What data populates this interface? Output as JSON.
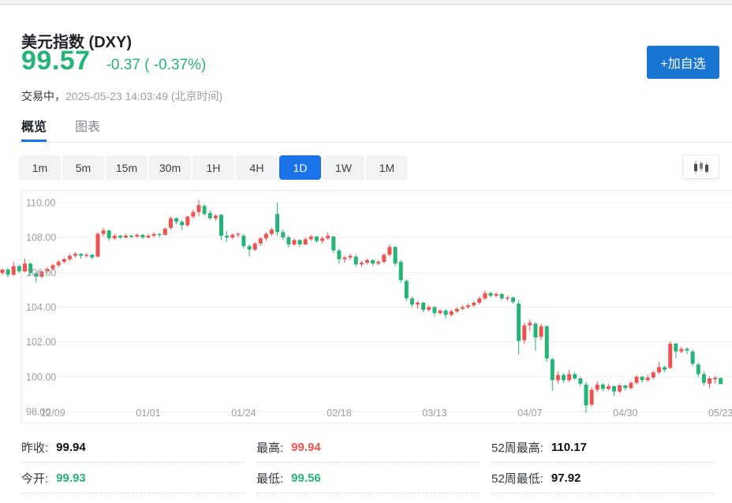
{
  "header": {
    "title": "美元指数 (DXY)",
    "price": "99.57",
    "change": "-0.37 ( -0.37%)",
    "status_label": "交易中，",
    "timestamp": "2025-05-23 14:03:49",
    "timezone_note": "(北京时间)",
    "watchlist_button": "+加自选"
  },
  "tabs": [
    {
      "key": "overview",
      "label": "概览",
      "active": true
    },
    {
      "key": "chart",
      "label": "图表",
      "active": false
    }
  ],
  "timeframes": {
    "options": [
      "1m",
      "5m",
      "15m",
      "30m",
      "1H",
      "4H",
      "1D",
      "1W",
      "1M"
    ],
    "active": "1D"
  },
  "chart_style_icon": "candlestick-chart-icon",
  "colors": {
    "up": "#ef5350",
    "down": "#26b377",
    "accent": "#1a73e8",
    "button_blue": "#1976d2",
    "grid": "#efefef",
    "axis_text": "#9e9e9e"
  },
  "chart_data": {
    "type": "candlestick",
    "symbol": "DXY",
    "timeframe": "1D",
    "color_convention": "red = rise, green = fall",
    "ylim": [
      97.6,
      110.4
    ],
    "y_ticks": [
      {
        "v": 110,
        "label": "110.00"
      },
      {
        "v": 108,
        "label": "108.00"
      },
      {
        "v": 106,
        "label": "106.00"
      },
      {
        "v": 104,
        "label": "104.00"
      },
      {
        "v": 102,
        "label": "102.00"
      },
      {
        "v": 100,
        "label": "100.00"
      },
      {
        "v": 98,
        "label": "98.00"
      }
    ],
    "x_ticks": [
      {
        "i": 9,
        "label": "12/09"
      },
      {
        "i": 26,
        "label": "01/01"
      },
      {
        "i": 43,
        "label": "01/24"
      },
      {
        "i": 60,
        "label": "02/18"
      },
      {
        "i": 77,
        "label": "03/13"
      },
      {
        "i": 94,
        "label": "04/07"
      },
      {
        "i": 111,
        "label": "04/30"
      },
      {
        "i": 128,
        "label": "05/23"
      }
    ],
    "candles": [
      [
        105.95,
        106.2,
        105.85,
        106.15
      ],
      [
        106.15,
        106.25,
        105.7,
        105.85
      ],
      [
        105.85,
        106.6,
        105.8,
        106.35
      ],
      [
        106.35,
        106.45,
        105.95,
        106.05
      ],
      [
        106.05,
        106.8,
        106.0,
        106.5
      ],
      [
        106.5,
        106.55,
        105.85,
        105.95
      ],
      [
        105.95,
        106.0,
        105.42,
        105.75
      ],
      [
        105.75,
        106.1,
        105.65,
        106.05
      ],
      [
        106.05,
        106.3,
        105.95,
        106.2
      ],
      [
        106.2,
        106.5,
        106.1,
        106.4
      ],
      [
        106.4,
        106.7,
        106.3,
        106.6
      ],
      [
        106.6,
        106.85,
        106.5,
        106.75
      ],
      [
        106.75,
        107.05,
        106.65,
        106.95
      ],
      [
        106.95,
        107.15,
        106.85,
        107.05
      ],
      [
        107.05,
        107.1,
        106.8,
        106.95
      ],
      [
        106.95,
        107.1,
        106.85,
        107.0
      ],
      [
        107.0,
        107.05,
        106.75,
        106.85
      ],
      [
        106.9,
        108.3,
        106.85,
        108.2
      ],
      [
        108.2,
        108.55,
        108.05,
        108.4
      ],
      [
        108.4,
        108.45,
        107.8,
        107.95
      ],
      [
        107.95,
        108.2,
        107.85,
        108.1
      ],
      [
        108.1,
        108.15,
        107.9,
        108.0
      ],
      [
        108.0,
        108.2,
        107.95,
        108.1
      ],
      [
        108.1,
        108.15,
        107.95,
        108.05
      ],
      [
        108.05,
        108.25,
        108.0,
        108.15
      ],
      [
        108.15,
        108.2,
        107.9,
        108.0
      ],
      [
        108.0,
        108.2,
        107.95,
        108.1
      ],
      [
        108.1,
        108.3,
        108.0,
        108.2
      ],
      [
        108.2,
        108.25,
        108.0,
        108.15
      ],
      [
        108.15,
        108.6,
        108.1,
        108.5
      ],
      [
        108.55,
        109.2,
        108.45,
        109.1
      ],
      [
        109.1,
        109.15,
        108.75,
        108.9
      ],
      [
        108.9,
        109.0,
        108.4,
        108.7
      ],
      [
        108.7,
        109.25,
        108.6,
        109.2
      ],
      [
        109.2,
        109.6,
        109.1,
        109.45
      ],
      [
        109.45,
        110.17,
        109.2,
        109.85
      ],
      [
        109.8,
        109.9,
        109.25,
        109.35
      ],
      [
        109.4,
        109.55,
        109.0,
        109.1
      ],
      [
        109.1,
        109.35,
        108.95,
        109.25
      ],
      [
        109.3,
        109.35,
        107.85,
        108.1
      ],
      [
        108.1,
        108.35,
        107.75,
        108.0
      ],
      [
        108.0,
        108.25,
        107.9,
        108.15
      ],
      [
        108.15,
        108.3,
        108.0,
        108.2
      ],
      [
        108.1,
        108.2,
        107.35,
        107.5
      ],
      [
        107.5,
        107.6,
        106.9,
        107.3
      ],
      [
        107.3,
        107.75,
        107.2,
        107.65
      ],
      [
        107.65,
        108.0,
        107.5,
        107.95
      ],
      [
        107.95,
        108.3,
        107.8,
        108.2
      ],
      [
        108.2,
        108.55,
        108.1,
        108.45
      ],
      [
        109.35,
        110.0,
        108.1,
        108.3
      ],
      [
        108.3,
        108.45,
        107.85,
        108.0
      ],
      [
        108.0,
        108.1,
        107.4,
        107.6
      ],
      [
        107.6,
        107.95,
        107.5,
        107.85
      ],
      [
        107.85,
        107.9,
        107.45,
        107.6
      ],
      [
        107.6,
        108.0,
        107.55,
        107.9
      ],
      [
        107.9,
        108.15,
        107.8,
        108.05
      ],
      [
        108.05,
        108.1,
        107.7,
        107.8
      ],
      [
        107.8,
        108.05,
        107.65,
        107.95
      ],
      [
        107.95,
        108.3,
        107.85,
        108.1
      ],
      [
        108.05,
        108.1,
        107.1,
        107.25
      ],
      [
        107.25,
        107.35,
        106.5,
        106.75
      ],
      [
        106.75,
        106.95,
        106.55,
        106.85
      ],
      [
        106.85,
        107.05,
        106.7,
        106.95
      ],
      [
        106.9,
        107.0,
        106.3,
        106.45
      ],
      [
        106.45,
        106.65,
        106.3,
        106.55
      ],
      [
        106.55,
        106.8,
        106.45,
        106.7
      ],
      [
        106.7,
        106.75,
        106.35,
        106.5
      ],
      [
        106.5,
        106.7,
        106.4,
        106.6
      ],
      [
        106.6,
        107.1,
        106.5,
        107.0
      ],
      [
        107.0,
        107.6,
        106.9,
        107.45
      ],
      [
        107.45,
        107.5,
        106.35,
        106.5
      ],
      [
        106.6,
        106.7,
        105.4,
        105.55
      ],
      [
        105.5,
        105.6,
        104.35,
        104.5
      ],
      [
        104.5,
        104.6,
        104.0,
        104.15
      ],
      [
        104.15,
        104.35,
        103.9,
        104.25
      ],
      [
        104.25,
        104.3,
        103.7,
        103.85
      ],
      [
        103.85,
        104.1,
        103.75,
        104.0
      ],
      [
        104.0,
        104.05,
        103.45,
        103.65
      ],
      [
        103.65,
        103.9,
        103.55,
        103.8
      ],
      [
        103.8,
        103.9,
        103.35,
        103.55
      ],
      [
        103.55,
        103.85,
        103.45,
        103.75
      ],
      [
        103.75,
        104.0,
        103.65,
        103.9
      ],
      [
        103.9,
        104.1,
        103.8,
        104.0
      ],
      [
        104.0,
        104.2,
        103.9,
        104.1
      ],
      [
        104.1,
        104.35,
        104.0,
        104.25
      ],
      [
        104.25,
        104.6,
        104.15,
        104.5
      ],
      [
        104.5,
        104.95,
        104.4,
        104.8
      ],
      [
        104.8,
        104.9,
        104.55,
        104.65
      ],
      [
        104.65,
        104.85,
        104.55,
        104.75
      ],
      [
        104.75,
        104.8,
        104.4,
        104.5
      ],
      [
        104.5,
        104.65,
        104.35,
        104.55
      ],
      [
        104.55,
        104.6,
        104.2,
        104.3
      ],
      [
        104.2,
        104.4,
        101.3,
        102.05
      ],
      [
        102.1,
        103.1,
        101.9,
        102.95
      ],
      [
        102.95,
        103.3,
        102.6,
        103.1
      ],
      [
        103.05,
        103.15,
        101.5,
        102.25
      ],
      [
        102.3,
        103.05,
        102.1,
        102.9
      ],
      [
        102.9,
        102.95,
        100.85,
        101.05
      ],
      [
        101.0,
        101.1,
        99.2,
        99.8
      ],
      [
        99.8,
        100.3,
        99.6,
        100.1
      ],
      [
        100.1,
        100.2,
        99.65,
        99.8
      ],
      [
        99.8,
        100.4,
        99.7,
        100.15
      ],
      [
        100.15,
        100.25,
        99.8,
        99.9
      ],
      [
        99.9,
        100.0,
        99.45,
        99.6
      ],
      [
        99.55,
        99.7,
        97.92,
        98.35
      ],
      [
        98.4,
        99.4,
        98.3,
        99.25
      ],
      [
        99.25,
        99.75,
        99.1,
        99.55
      ],
      [
        99.55,
        99.65,
        99.15,
        99.3
      ],
      [
        99.3,
        99.6,
        99.2,
        99.45
      ],
      [
        99.45,
        99.5,
        98.9,
        99.15
      ],
      [
        99.15,
        99.6,
        99.05,
        99.5
      ],
      [
        99.5,
        99.55,
        99.2,
        99.35
      ],
      [
        99.35,
        99.75,
        99.25,
        99.65
      ],
      [
        99.65,
        100.1,
        99.55,
        100.0
      ],
      [
        100.0,
        100.05,
        99.65,
        99.8
      ],
      [
        99.8,
        100.1,
        99.7,
        99.95
      ],
      [
        99.95,
        100.35,
        99.85,
        100.25
      ],
      [
        100.25,
        100.85,
        100.15,
        100.55
      ],
      [
        100.55,
        100.65,
        100.25,
        100.4
      ],
      [
        100.5,
        102.05,
        100.45,
        101.9
      ],
      [
        101.9,
        101.95,
        101.05,
        101.45
      ],
      [
        101.45,
        101.75,
        101.35,
        101.6
      ],
      [
        101.6,
        101.7,
        101.3,
        101.5
      ],
      [
        101.45,
        101.55,
        100.6,
        100.75
      ],
      [
        100.7,
        100.8,
        100.0,
        100.15
      ],
      [
        100.15,
        100.3,
        99.5,
        99.65
      ],
      [
        99.6,
        100.0,
        99.35,
        99.9
      ],
      [
        99.85,
        100.05,
        99.6,
        99.94
      ],
      [
        99.93,
        99.94,
        99.56,
        99.57
      ]
    ]
  },
  "stats": {
    "columns": [
      [
        {
          "key": "prev-close",
          "label": "昨收:",
          "value": "99.94",
          "color": "dark"
        },
        {
          "key": "open",
          "label": "今开:",
          "value": "99.93",
          "color": "green"
        }
      ],
      [
        {
          "key": "high",
          "label": "最高:",
          "value": "99.94",
          "color": "red"
        },
        {
          "key": "low",
          "label": "最低:",
          "value": "99.56",
          "color": "green"
        }
      ],
      [
        {
          "key": "52w-high",
          "label": "52周最高:",
          "value": "110.17",
          "color": "dark"
        },
        {
          "key": "52w-low",
          "label": "52周最低:",
          "value": "97.92",
          "color": "dark"
        }
      ]
    ]
  }
}
